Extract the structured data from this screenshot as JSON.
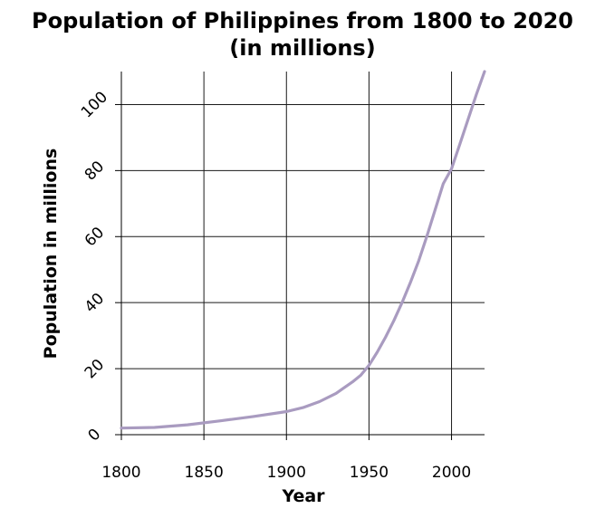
{
  "chart_data": {
    "type": "line",
    "title": [
      "Population of Philippines from 1800 to 2020",
      "(in millions)"
    ],
    "xlabel": "Year",
    "ylabel": "Population in millions",
    "xlim": [
      1800,
      2020
    ],
    "ylim": [
      0,
      110
    ],
    "x_ticks": [
      1800,
      1850,
      1900,
      1950,
      2000
    ],
    "y_ticks": [
      0,
      20,
      40,
      60,
      80,
      100
    ],
    "grid": true,
    "line_color": "#a99bc0",
    "series": [
      {
        "x": [
          1800,
          1820,
          1840,
          1860,
          1880,
          1900,
          1910,
          1920,
          1930,
          1940,
          1945,
          1950,
          1955,
          1960,
          1965,
          1970,
          1975,
          1980,
          1985,
          1990,
          1995,
          2000,
          2005,
          2010,
          2015,
          2020
        ],
        "y": [
          2.0,
          2.2,
          3.0,
          4.2,
          5.5,
          7.0,
          8.2,
          10.0,
          12.5,
          16.0,
          18.0,
          21.0,
          25.0,
          29.5,
          34.5,
          40.0,
          46.0,
          52.5,
          60.0,
          68.0,
          76.0,
          80.5,
          88.0,
          95.5,
          103.0,
          110.0
        ]
      }
    ]
  }
}
